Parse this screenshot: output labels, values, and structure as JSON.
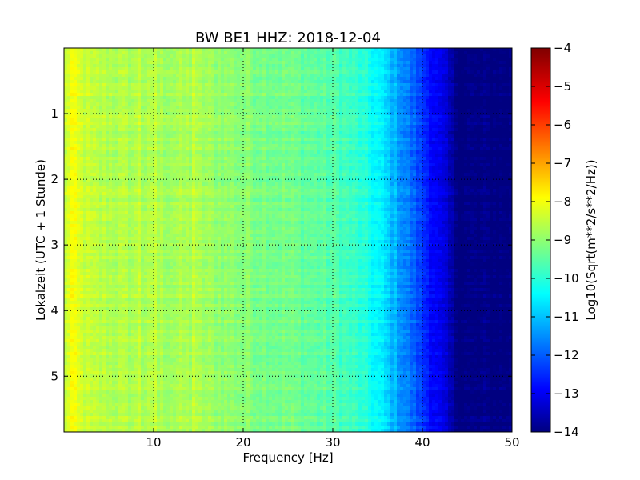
{
  "chart_data": {
    "type": "heatmap",
    "title": "BW BE1 HHZ: 2018-12-04",
    "xlabel": "Frequency [Hz]",
    "ylabel": "Lokalzeit (UTC + 1 Stunde)",
    "xlim": [
      0,
      50
    ],
    "ylim": [
      5.85,
      0
    ],
    "xticks": [
      10,
      20,
      30,
      40,
      50
    ],
    "yticks": [
      1,
      2,
      3,
      4,
      5
    ],
    "grid": true,
    "colorbar": {
      "label": "Log10(Sqrt(m**2/s**2/Hz))",
      "range": [
        -14,
        -4
      ],
      "ticks": [
        -4,
        -5,
        -6,
        -7,
        -8,
        -9,
        -10,
        -11,
        -12,
        -13,
        -14
      ],
      "colormap": "jet"
    },
    "spectrum_profile": {
      "frequency_hz": [
        0,
        0.8,
        1.5,
        3,
        6,
        10,
        14.5,
        20,
        25,
        30,
        33,
        35,
        37,
        39,
        41,
        42.5,
        44,
        50
      ],
      "log_amplitude": [
        -8.5,
        -7.8,
        -8.1,
        -8.4,
        -8.5,
        -8.6,
        -8.6,
        -8.9,
        -9.1,
        -9.4,
        -9.8,
        -10.3,
        -11,
        -11.8,
        -12.6,
        -13.2,
        -14,
        -14
      ]
    },
    "features": [
      {
        "frequency_hz": 14.3,
        "description": "vertical line"
      },
      {
        "frequency_hz": 10.3,
        "description": "vertical line"
      },
      {
        "frequency_hz": 8.5,
        "description": "vertical line"
      }
    ]
  },
  "colors": {
    "jet_stops": [
      "#00007f",
      "#0000ff",
      "#00ffff",
      "#ffff00",
      "#ff0000",
      "#7f0000"
    ],
    "grid": "#000000",
    "frame": "#000000"
  }
}
